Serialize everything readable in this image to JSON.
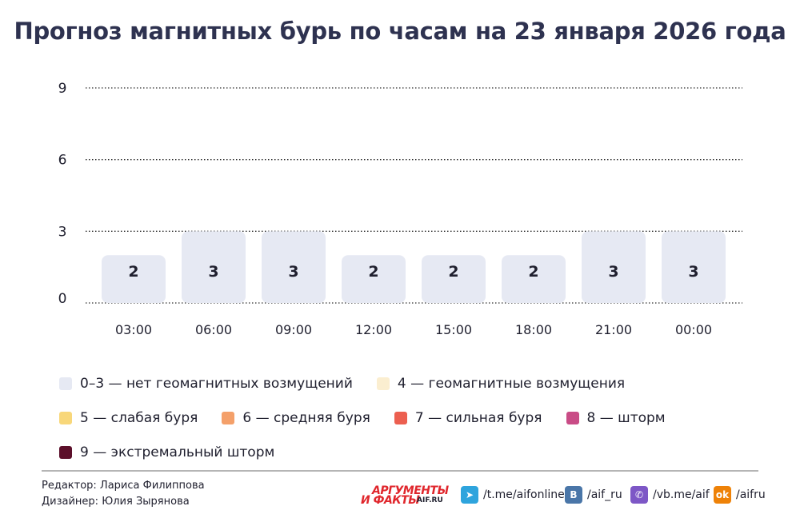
{
  "title": "Прогноз магнитных бурь по часам на 23 января 2026 года",
  "chart_data": {
    "type": "bar",
    "categories": [
      "03:00",
      "06:00",
      "09:00",
      "12:00",
      "15:00",
      "18:00",
      "21:00",
      "00:00"
    ],
    "values": [
      2,
      3,
      3,
      2,
      2,
      2,
      3,
      3
    ],
    "ylim": [
      0,
      9
    ],
    "yticks": [
      0,
      3,
      6,
      9
    ],
    "grid": true,
    "bar_color": "#e6e9f3"
  },
  "legend": [
    [
      {
        "label": "0–3 — нет геомагнитных возмущений",
        "color": "#e6e9f3"
      },
      {
        "label": "4 — геомагнитные возмущения",
        "color": "#fbeed0"
      }
    ],
    [
      {
        "label": "5 — слабая буря",
        "color": "#f8d77a"
      },
      {
        "label": "6 — средняя буря",
        "color": "#f4a06a"
      },
      {
        "label": "7 — сильная буря",
        "color": "#ec5f50"
      },
      {
        "label": "8 — шторм",
        "color": "#c94c86"
      }
    ],
    [
      {
        "label": "9 — экстремальный шторм",
        "color": "#5c0f2a"
      }
    ]
  ],
  "footer": {
    "editor": "Редактор: Лариса Филиппова",
    "designer": "Дизайнер: Юлия Зырянова",
    "logo_line1": "АРГУМЕНТЫ",
    "logo_line2": "И ФАКТЫ",
    "logo_site": "AIF.RU",
    "social": [
      {
        "icon": "telegram-icon",
        "glyph": "➤",
        "text": "/t.me/aifonline",
        "color": "#2ea4dd"
      },
      {
        "icon": "vk-icon",
        "glyph": "В",
        "text": "/aif_ru",
        "color": "#4a76a8"
      },
      {
        "icon": "viber-icon",
        "glyph": "✆",
        "text": "/vb.me/aif",
        "color": "#7d57c6"
      },
      {
        "icon": "ok-icon",
        "glyph": "ok",
        "text": "/aifru",
        "color": "#ee8208"
      }
    ]
  }
}
